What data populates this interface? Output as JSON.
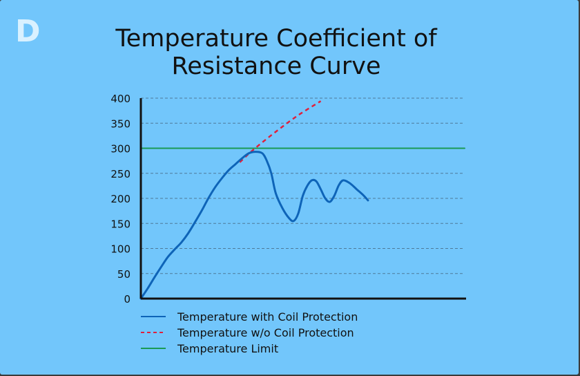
{
  "badge": "D",
  "chart_data": {
    "type": "line",
    "title": "Temperature Coefficient of Resistance Curve",
    "xlabel": "",
    "ylabel": "",
    "ylim": [
      0,
      400
    ],
    "yticks": [
      0,
      50,
      100,
      150,
      200,
      250,
      300,
      350,
      400
    ],
    "grid": "horizontal dashed",
    "legend_position": "bottom-left",
    "series": [
      {
        "name": "Temperature with Coil Protection",
        "style": "solid",
        "color": "#0e64b8",
        "points": [
          [
            0,
            0
          ],
          [
            3,
            20
          ],
          [
            6,
            42
          ],
          [
            9,
            63
          ],
          [
            12,
            83
          ],
          [
            15,
            98
          ],
          [
            18,
            112
          ],
          [
            21,
            130
          ],
          [
            24,
            152
          ],
          [
            27,
            175
          ],
          [
            30,
            200
          ],
          [
            33,
            222
          ],
          [
            36,
            240
          ],
          [
            39,
            256
          ],
          [
            42,
            268
          ],
          [
            45,
            280
          ],
          [
            48,
            290
          ],
          [
            51,
            293
          ],
          [
            54,
            290
          ],
          [
            56,
            275
          ],
          [
            58,
            250
          ],
          [
            60,
            210
          ],
          [
            63,
            180
          ],
          [
            66,
            160
          ],
          [
            68,
            155
          ],
          [
            70,
            170
          ],
          [
            72,
            205
          ],
          [
            74,
            225
          ],
          [
            76,
            236
          ],
          [
            78,
            234
          ],
          [
            80,
            218
          ],
          [
            82,
            200
          ],
          [
            84,
            193
          ],
          [
            86,
            205
          ],
          [
            88,
            226
          ],
          [
            90,
            236
          ],
          [
            93,
            230
          ],
          [
            96,
            218
          ],
          [
            99,
            206
          ],
          [
            101,
            196
          ]
        ]
      },
      {
        "name": "Temperature w/o Coil Protection",
        "style": "dashed",
        "color": "#e0203c",
        "points": [
          [
            44,
            272
          ],
          [
            50,
            297
          ],
          [
            60,
            333
          ],
          [
            70,
            366
          ],
          [
            80,
            394
          ]
        ]
      },
      {
        "name": "Temperature Limit",
        "style": "solid",
        "color": "#1a9a55",
        "points": [
          [
            0,
            300
          ],
          [
            144,
            300
          ]
        ]
      }
    ]
  }
}
